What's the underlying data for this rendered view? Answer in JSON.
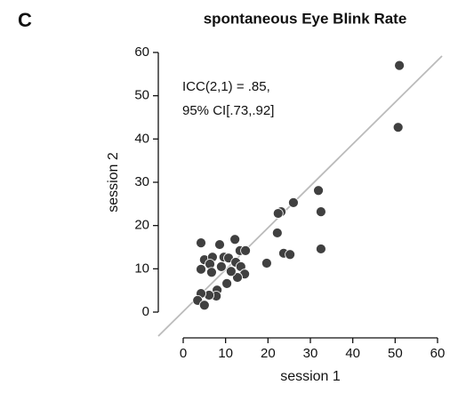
{
  "chart_data": {
    "type": "scatter",
    "panel_label": "C",
    "title": "spontaneous Eye Blink Rate",
    "annotation": [
      "ICC(2,1) = .85,",
      "95% CI[.73,.92]"
    ],
    "xlabel": "session 1",
    "ylabel": "session 2",
    "xlim": [
      0,
      60
    ],
    "ylim": [
      0,
      60
    ],
    "xticks": [
      0,
      10,
      20,
      30,
      40,
      50,
      60
    ],
    "yticks": [
      0,
      10,
      20,
      30,
      40,
      50,
      60
    ],
    "color": "#404040",
    "x": [
      51,
      50.7,
      31.9,
      32.5,
      32.5,
      26,
      23.1,
      22.4,
      22.2,
      23.7,
      25.2,
      19.7,
      4.2,
      8.6,
      12.2,
      5,
      6.9,
      9.6,
      10.7,
      12.4,
      13.4,
      14.7,
      4.2,
      6.3,
      9,
      6.7,
      13.6,
      14.5,
      12.8,
      10.3,
      8,
      7.8,
      6.1,
      4.2,
      3.4,
      5,
      11.3
    ],
    "y": [
      57,
      42.7,
      28.1,
      23.2,
      14.6,
      25.3,
      23.2,
      22.8,
      18.3,
      13.6,
      13.3,
      11.3,
      16,
      15.6,
      16.8,
      12.1,
      12.7,
      12.7,
      12.5,
      11.5,
      14.2,
      14.2,
      9.9,
      11.1,
      10.5,
      9.2,
      10.5,
      8.8,
      8,
      6.6,
      5.1,
      3.7,
      3.9,
      4.3,
      2.7,
      1.6,
      9.4
    ]
  }
}
